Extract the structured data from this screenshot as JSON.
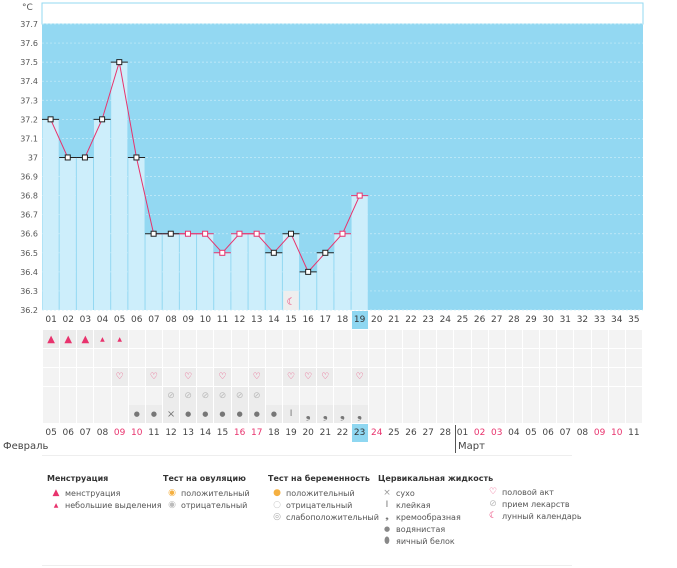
{
  "chart_data": {
    "type": "line",
    "unit_label": "°C",
    "yticks": [
      "37.7",
      "37.6",
      "37.5",
      "37.4",
      "37.3",
      "37.2",
      "37.1",
      "37",
      "36.9",
      "36.8",
      "36.7",
      "36.6",
      "36.5",
      "36.4",
      "36.3",
      "36.2"
    ],
    "ylim": [
      36.2,
      37.7
    ],
    "cycle_days": [
      "01",
      "02",
      "03",
      "04",
      "05",
      "06",
      "07",
      "08",
      "09",
      "10",
      "11",
      "12",
      "13",
      "14",
      "15",
      "16",
      "17",
      "18",
      "19",
      "20",
      "21",
      "22",
      "23",
      "24",
      "25",
      "26",
      "27",
      "28",
      "29",
      "30",
      "31",
      "32",
      "33",
      "34",
      "35"
    ],
    "temperatures": [
      37.2,
      37.0,
      37.0,
      37.2,
      37.5,
      37.0,
      36.6,
      36.6,
      36.6,
      36.6,
      36.5,
      36.6,
      36.6,
      36.5,
      36.6,
      36.4,
      36.5,
      36.6,
      36.8
    ],
    "marker_style": [
      "b",
      "b",
      "b",
      "b",
      "b",
      "b",
      "b",
      "b",
      "p",
      "p",
      "p",
      "p",
      "p",
      "b",
      "b",
      "b",
      "b",
      "p",
      "p"
    ],
    "current_day": 19,
    "moon_day": 15,
    "colors": {
      "background": "#93d8f2",
      "bar": "#cdeefb",
      "line": "#e8336d"
    }
  },
  "rows": {
    "menstruation": {
      "1": "heavy",
      "2": "heavy",
      "3": "heavy",
      "4": "light",
      "5": "light"
    },
    "ovulation_test": {},
    "intercourse": [
      5,
      7,
      9,
      11,
      13,
      15,
      16,
      17,
      19
    ],
    "medication": [
      8,
      9,
      10,
      11,
      12,
      13
    ],
    "cervical": {
      "6": "water",
      "7": "water",
      "8": "dry",
      "9": "water",
      "10": "water",
      "11": "water",
      "12": "water",
      "13": "water",
      "14": "water",
      "15": "sticky",
      "16": "creamy",
      "17": "creamy",
      "18": "creamy",
      "19": "creamy"
    }
  },
  "dates": [
    "05",
    "06",
    "07",
    "08",
    "09",
    "10",
    "11",
    "12",
    "13",
    "14",
    "15",
    "16",
    "17",
    "18",
    "19",
    "20",
    "21",
    "22",
    "23",
    "24",
    "25",
    "26",
    "27",
    "28",
    "01",
    "02",
    "03",
    "04",
    "05",
    "06",
    "07",
    "08",
    "09",
    "10",
    "11"
  ],
  "red_dates": [
    4,
    5,
    11,
    12,
    19,
    25,
    26,
    32,
    33
  ],
  "months": {
    "feb": "Февраль",
    "mar": "Март"
  },
  "legend": {
    "menstr": {
      "title": "Менструация",
      "items": [
        "менструация",
        "небольшие выделения"
      ]
    },
    "ovul": {
      "title": "Тест на овуляцию",
      "items": [
        "положительный",
        "отрицательный"
      ]
    },
    "preg": {
      "title": "Тест на беременность",
      "items": [
        "положительный",
        "отрицательный",
        "слабоположительный"
      ]
    },
    "cerv": {
      "title": "Цервикальная жидкость",
      "items": [
        "сухо",
        "клейкая",
        "кремообразная",
        "водянистая",
        "яичный белок"
      ]
    },
    "other": {
      "items": [
        "половой акт",
        "прием лекарств",
        "лунный календарь"
      ]
    }
  }
}
